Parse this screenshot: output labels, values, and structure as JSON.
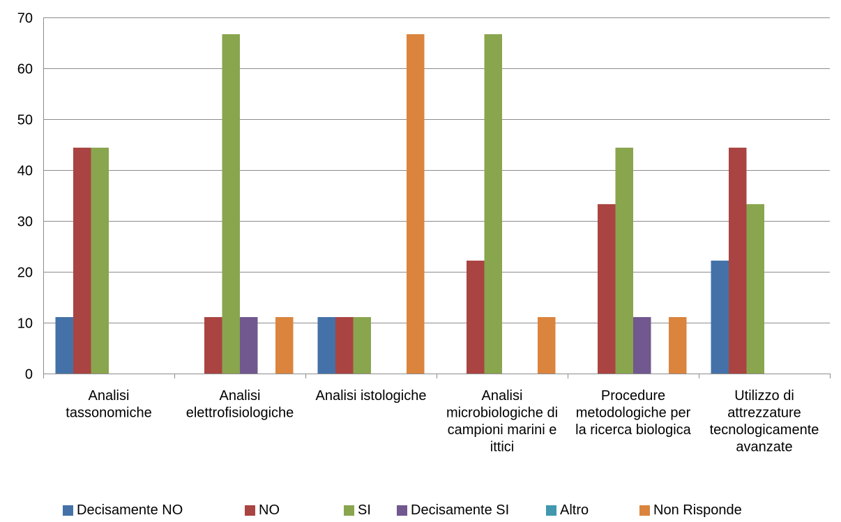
{
  "chart_data": {
    "type": "bar",
    "title": "",
    "xlabel": "",
    "ylabel": "",
    "ylim": [
      0,
      70
    ],
    "yticks": [
      0,
      10,
      20,
      30,
      40,
      50,
      60,
      70
    ],
    "grid": true,
    "legend_position": "bottom",
    "categories": [
      [
        "Analisi",
        "tassonomiche"
      ],
      [
        "Analisi",
        "elettrofisiologiche"
      ],
      [
        "Analisi istologiche"
      ],
      [
        "Analisi",
        "microbiologiche di",
        "campioni marini e",
        "ittici"
      ],
      [
        "Procedure",
        "metodologiche per",
        "la ricerca biologica"
      ],
      [
        "Utilizzo di",
        "attrezzature",
        "tecnologicamente",
        "avanzate"
      ]
    ],
    "series": [
      {
        "name": "Decisamente NO",
        "color": "#4472A8",
        "values": [
          11.1,
          0,
          11.1,
          0,
          0,
          22.2
        ]
      },
      {
        "name": "NO",
        "color": "#AA4442",
        "values": [
          44.4,
          11.1,
          11.1,
          22.2,
          33.3,
          44.4
        ]
      },
      {
        "name": "SI",
        "color": "#89A54E",
        "values": [
          44.4,
          66.7,
          11.1,
          66.7,
          44.4,
          33.3
        ]
      },
      {
        "name": "Decisamente SI",
        "color": "#71588F",
        "values": [
          0,
          11.1,
          0,
          0,
          11.1,
          0
        ]
      },
      {
        "name": "Altro",
        "color": "#4198AF",
        "values": [
          0,
          0,
          0,
          0,
          0,
          0
        ]
      },
      {
        "name": "Non Risponde",
        "color": "#DB843D",
        "values": [
          0,
          11.1,
          66.7,
          11.1,
          11.1,
          0
        ]
      }
    ]
  }
}
